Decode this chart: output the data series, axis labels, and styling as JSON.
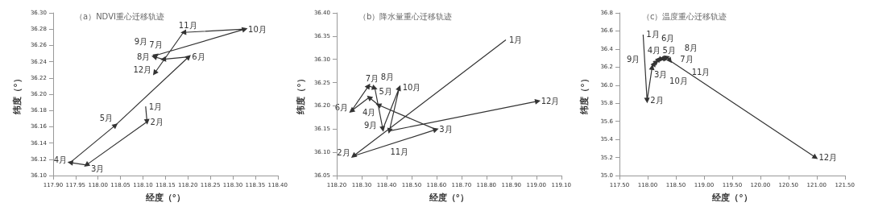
{
  "chart_data": [
    {
      "type": "line",
      "title": "（a）NDVI重心迁移轨迹",
      "xlabel": "经度（°）",
      "ylabel": "纬度（°）",
      "marker": "triangle",
      "grid": false,
      "color": "#333333",
      "x": [
        118.106,
        118.109,
        117.974,
        117.938,
        118.039,
        118.202,
        118.145,
        118.125,
        118.13,
        118.327,
        118.19,
        118.126
      ],
      "values": [
        36.185,
        36.166,
        36.113,
        36.116,
        36.162,
        36.246,
        36.243,
        36.246,
        36.248,
        36.28,
        36.276,
        36.226
      ],
      "annotations": [
        {
          "text": "1月",
          "x": 118.106,
          "y": 36.185
        },
        {
          "text": "2月",
          "x": 118.109,
          "y": 36.166
        },
        {
          "text": "3月",
          "x": 117.974,
          "y": 36.113
        },
        {
          "text": "4月",
          "x": 117.938,
          "y": 36.116
        },
        {
          "text": "5月",
          "x": 118.039,
          "y": 36.162
        },
        {
          "text": "6月",
          "x": 118.202,
          "y": 36.246
        },
        {
          "text": "7月",
          "x": 118.145,
          "y": 36.243
        },
        {
          "text": "8月",
          "x": 118.125,
          "y": 36.246
        },
        {
          "text": "9月",
          "x": 118.13,
          "y": 36.248
        },
        {
          "text": "10月",
          "x": 118.327,
          "y": 36.28
        },
        {
          "text": "11月",
          "x": 118.19,
          "y": 36.276
        },
        {
          "text": "12月",
          "x": 118.126,
          "y": 36.226
        }
      ],
      "xlim": [
        117.9,
        118.4
      ],
      "xticks": [
        {
          "value": 117.9,
          "label": "117.90"
        },
        {
          "value": 117.95,
          "label": "117.95"
        },
        {
          "value": 118,
          "label": "118.00"
        },
        {
          "value": 118.05,
          "label": "118.05"
        },
        {
          "value": 118.1,
          "label": "118.10"
        },
        {
          "value": 118.15,
          "label": "118.15"
        },
        {
          "value": 118.2,
          "label": "118.20"
        },
        {
          "value": 118.25,
          "label": "118.25"
        },
        {
          "value": 118.3,
          "label": "118.30"
        },
        {
          "value": 118.35,
          "label": "118.35"
        },
        {
          "value": 118.4,
          "label": "118.40"
        }
      ],
      "ylim": [
        36.1,
        36.3
      ],
      "yticks": [
        {
          "value": 36.1,
          "label": "36.10"
        },
        36.12,
        36.14,
        36.16,
        36.18,
        {
          "value": 36.2,
          "label": "36.20"
        },
        36.22,
        36.24,
        36.26,
        36.28,
        {
          "value": 36.3,
          "label": "36.30"
        }
      ]
    },
    {
      "type": "line",
      "title": "（b）降水量重心迁移轨迹",
      "xlabel": "经度（°）",
      "ylabel": "纬度（°）",
      "marker": "triangle",
      "grid": false,
      "color": "#333333",
      "x": [
        118.878,
        118.267,
        118.598,
        118.367,
        118.33,
        118.259,
        118.328,
        118.353,
        118.385,
        118.451,
        118.411,
        119.006
      ],
      "values": [
        36.342,
        36.092,
        36.149,
        36.202,
        36.218,
        36.189,
        36.243,
        36.238,
        36.15,
        36.239,
        36.146,
        36.21
      ],
      "annotations": [
        {
          "text": "1月",
          "x": 118.878,
          "y": 36.342
        },
        {
          "text": "2月",
          "x": 118.267,
          "y": 36.092
        },
        {
          "text": "3月",
          "x": 118.598,
          "y": 36.149
        },
        {
          "text": "4月",
          "x": 118.367,
          "y": 36.202
        },
        {
          "text": "5月",
          "x": 118.33,
          "y": 36.218
        },
        {
          "text": "6月",
          "x": 118.259,
          "y": 36.189
        },
        {
          "text": "7月",
          "x": 118.328,
          "y": 36.243
        },
        {
          "text": "8月",
          "x": 118.353,
          "y": 36.238
        },
        {
          "text": "9月",
          "x": 118.385,
          "y": 36.15
        },
        {
          "text": "10月",
          "x": 118.451,
          "y": 36.239
        },
        {
          "text": "11月",
          "x": 118.411,
          "y": 36.146
        },
        {
          "text": "12月",
          "x": 119.006,
          "y": 36.21
        }
      ],
      "xlim": [
        118.2,
        119.1
      ],
      "xticks": [
        {
          "value": 118.2,
          "label": "118.20"
        },
        {
          "value": 118.3,
          "label": "118.30"
        },
        {
          "value": 118.4,
          "label": "118.40"
        },
        {
          "value": 118.5,
          "label": "118.50"
        },
        {
          "value": 118.6,
          "label": "118.60"
        },
        {
          "value": 118.7,
          "label": "118.70"
        },
        {
          "value": 118.8,
          "label": "118.80"
        },
        {
          "value": 118.9,
          "label": "118.90"
        },
        {
          "value": 119,
          "label": "119.00"
        },
        {
          "value": 119.1,
          "label": "119.10"
        }
      ],
      "ylim": [
        36.05,
        36.4
      ],
      "yticks": [
        36.05,
        {
          "value": 36.1,
          "label": "36.10"
        },
        36.15,
        {
          "value": 36.2,
          "label": "36.20"
        },
        36.25,
        {
          "value": 36.3,
          "label": "36.30"
        },
        36.35,
        {
          "value": 36.4,
          "label": "36.40"
        }
      ]
    },
    {
      "type": "line",
      "title": "（c）温度重心迁移轨迹",
      "xlabel": "经度（°）",
      "ylabel": "纬度（°）",
      "marker": "triangle",
      "grid": false,
      "color": "#333333",
      "x": [
        117.92,
        117.99,
        118.08,
        118.12,
        118.16,
        118.2,
        118.26,
        118.32,
        118.25,
        118.35,
        118.4,
        120.98
      ],
      "values": [
        36.56,
        35.83,
        36.2,
        36.24,
        36.26,
        36.29,
        36.29,
        36.3,
        36.29,
        36.31,
        36.27,
        35.2
      ],
      "annotations": [
        {
          "text": "1月",
          "x": 117.92,
          "y": 36.56
        },
        {
          "text": "2月",
          "x": 117.99,
          "y": 35.83
        },
        {
          "text": "3月",
          "x": 118.08,
          "y": 36.2
        },
        {
          "text": "4月",
          "x": 118.12,
          "y": 36.24
        },
        {
          "text": "5月",
          "x": 118.16,
          "y": 36.26
        },
        {
          "text": "6月",
          "x": 118.2,
          "y": 36.29
        },
        {
          "text": "7月",
          "x": 118.26,
          "y": 36.29
        },
        {
          "text": "8月",
          "x": 118.32,
          "y": 36.3
        },
        {
          "text": "9月",
          "x": 118.25,
          "y": 36.29
        },
        {
          "text": "10月",
          "x": 118.35,
          "y": 36.31
        },
        {
          "text": "11月",
          "x": 118.4,
          "y": 36.27
        },
        {
          "text": "12月",
          "x": 120.98,
          "y": 35.2
        }
      ],
      "xlim": [
        117.5,
        121.5
      ],
      "xticks": [
        {
          "value": 117.5,
          "label": "117.50"
        },
        {
          "value": 118,
          "label": "118.00"
        },
        {
          "value": 118.5,
          "label": "118.50"
        },
        {
          "value": 119,
          "label": "119.00"
        },
        {
          "value": 119.5,
          "label": "119.50"
        },
        {
          "value": 120,
          "label": "120.00"
        },
        {
          "value": 120.5,
          "label": "120.50"
        },
        {
          "value": 121,
          "label": "121.00"
        },
        {
          "value": 121.5,
          "label": "121.50"
        }
      ],
      "ylim": [
        35,
        36.8
      ],
      "yticks": [
        {
          "value": 35,
          "label": "35.0"
        },
        35.2,
        35.4,
        35.6,
        35.8,
        {
          "value": 36,
          "label": "36.0"
        },
        36.2,
        36.4,
        36.6,
        36.8
      ]
    }
  ]
}
